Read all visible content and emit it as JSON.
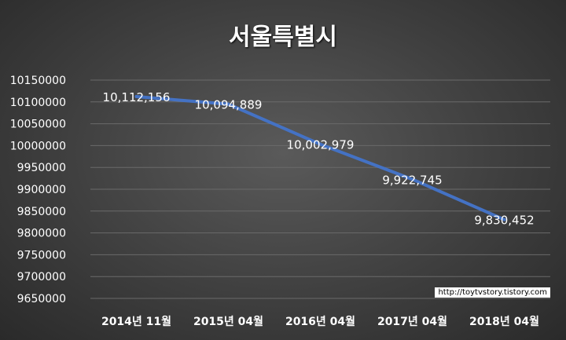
{
  "chart_data": {
    "type": "line",
    "title": "서울특별시",
    "categories": [
      "2014년 11월",
      "2015년 04월",
      "2016년 04월",
      "2017년 04월",
      "2018년 04월"
    ],
    "series": [
      {
        "values": [
          10112156,
          10094889,
          10002979,
          9922745,
          9830452
        ],
        "data_labels": [
          "10,112,156",
          "10,094,889",
          "10,002,979",
          "9,922,745",
          "9,830,452"
        ]
      }
    ],
    "ylim": [
      9650000,
      10150000
    ],
    "y_ticks": [
      10150000,
      10100000,
      10050000,
      10000000,
      9950000,
      9900000,
      9850000,
      9800000,
      9750000,
      9700000,
      9650000
    ],
    "grid": true,
    "legend": "none",
    "xlabel": "",
    "ylabel": "",
    "colors": {
      "line": "#4472c4",
      "grid": "#6a6a6a",
      "text": "#ffffff"
    }
  },
  "watermark": "http://toytvstory.tistory.com"
}
